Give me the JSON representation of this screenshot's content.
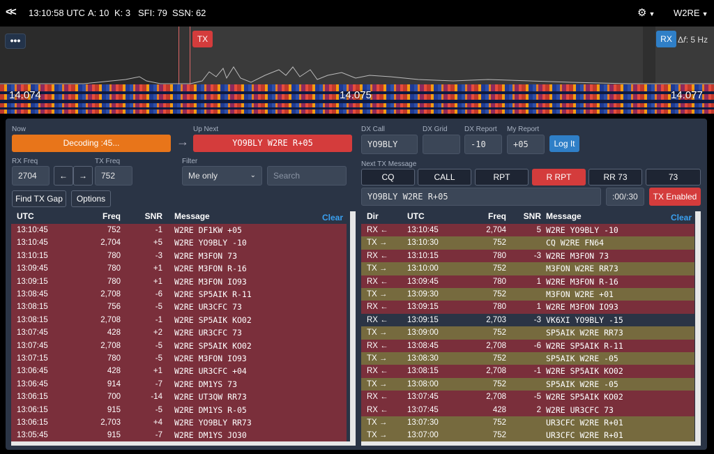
{
  "topbar": {
    "back_icon": "double-chevron-left-icon",
    "time": "13:10:58 UTC",
    "a_index": "A: 10",
    "k_index": "K: 3",
    "sfi": "SFI: 79",
    "ssn": "SSN: 62",
    "settings_icon": "gear-icon",
    "user": "W2RE"
  },
  "waterfall": {
    "menu_label": "•••",
    "tx_label": "TX",
    "rx_label": "RX",
    "delta": "Δ𝑓: 5 Hz",
    "freq_left": "14.074",
    "freq_mid": "14.075",
    "freq_right": "14.077"
  },
  "left_panel": {
    "now_label": "Now",
    "now_value": "Decoding :45...",
    "upnext_label": "Up Next",
    "upnext_value": "YO9BLY W2RE R+05",
    "rxfreq_label": "RX Freq",
    "rxfreq_value": "2704",
    "txfreq_label": "TX Freq",
    "txfreq_value": "752",
    "filter_label": "Filter",
    "filter_value": "Me only",
    "search_placeholder": "Search",
    "find_gap": "Find TX Gap",
    "options": "Options",
    "clear": "Clear",
    "headers": {
      "utc": "UTC",
      "freq": "Freq",
      "snr": "SNR",
      "msg": "Message"
    },
    "rows": [
      {
        "utc": "13:10:45",
        "freq": "752",
        "snr": "-1",
        "msg": "W2RE DF1KW +05"
      },
      {
        "utc": "13:10:45",
        "freq": "2,704",
        "snr": "+5",
        "msg": "W2RE YO9BLY -10"
      },
      {
        "utc": "13:10:15",
        "freq": "780",
        "snr": "-3",
        "msg": "W2RE M3FON 73"
      },
      {
        "utc": "13:09:45",
        "freq": "780",
        "snr": "+1",
        "msg": "W2RE M3FON R-16"
      },
      {
        "utc": "13:09:15",
        "freq": "780",
        "snr": "+1",
        "msg": "W2RE M3FON IO93"
      },
      {
        "utc": "13:08:45",
        "freq": "2,708",
        "snr": "-6",
        "msg": "W2RE SP5AIK R-11"
      },
      {
        "utc": "13:08:15",
        "freq": "756",
        "snr": "-5",
        "msg": "W2RE UR3CFC 73"
      },
      {
        "utc": "13:08:15",
        "freq": "2,708",
        "snr": "-1",
        "msg": "W2RE SP5AIK KO02"
      },
      {
        "utc": "13:07:45",
        "freq": "428",
        "snr": "+2",
        "msg": "W2RE UR3CFC 73"
      },
      {
        "utc": "13:07:45",
        "freq": "2,708",
        "snr": "-5",
        "msg": "W2RE SP5AIK KO02"
      },
      {
        "utc": "13:07:15",
        "freq": "780",
        "snr": "-5",
        "msg": "W2RE M3FON IO93"
      },
      {
        "utc": "13:06:45",
        "freq": "428",
        "snr": "+1",
        "msg": "W2RE UR3CFC +04"
      },
      {
        "utc": "13:06:45",
        "freq": "914",
        "snr": "-7",
        "msg": "W2RE DM1YS 73"
      },
      {
        "utc": "13:06:15",
        "freq": "700",
        "snr": "-14",
        "msg": "W2RE UT3QW RR73"
      },
      {
        "utc": "13:06:15",
        "freq": "915",
        "snr": "-5",
        "msg": "W2RE DM1YS R-05"
      },
      {
        "utc": "13:06:15",
        "freq": "2,703",
        "snr": "+4",
        "msg": "W2RE YO9BLY RR73"
      },
      {
        "utc": "13:05:45",
        "freq": "915",
        "snr": "-7",
        "msg": "W2RE DM1YS JO30"
      }
    ]
  },
  "right_panel": {
    "dxcall_label": "DX Call",
    "dxcall_value": "YO9BLY",
    "dxgrid_label": "DX Grid",
    "dxgrid_value": "",
    "dxreport_label": "DX Report",
    "dxreport_value": "-10",
    "myreport_label": "My Report",
    "myreport_value": "+05",
    "logit": "Log It",
    "next_tx_label": "Next TX Message",
    "tx_buttons": [
      "CQ",
      "CALL",
      "RPT",
      "R RPT",
      "RR 73",
      "73"
    ],
    "tx_message": "YO9BLY W2RE R+05",
    "tx_timer": ":00/:30",
    "tx_enabled": "TX Enabled",
    "clear": "Clear",
    "headers": {
      "dir": "Dir",
      "utc": "UTC",
      "freq": "Freq",
      "snr": "SNR",
      "msg": "Message"
    },
    "rows": [
      {
        "dir": "RX ←",
        "utc": "13:10:45",
        "freq": "2,704",
        "snr": "5",
        "msg": "W2RE YO9BLY -10",
        "kind": "rx"
      },
      {
        "dir": "TX →",
        "utc": "13:10:30",
        "freq": "752",
        "snr": "",
        "msg": "CQ W2RE FN64",
        "kind": "tx"
      },
      {
        "dir": "RX ←",
        "utc": "13:10:15",
        "freq": "780",
        "snr": "-3",
        "msg": "W2RE M3FON 73",
        "kind": "rx"
      },
      {
        "dir": "TX →",
        "utc": "13:10:00",
        "freq": "752",
        "snr": "",
        "msg": "M3FON W2RE RR73",
        "kind": "tx"
      },
      {
        "dir": "RX ←",
        "utc": "13:09:45",
        "freq": "780",
        "snr": "1",
        "msg": "W2RE M3FON R-16",
        "kind": "rx"
      },
      {
        "dir": "TX →",
        "utc": "13:09:30",
        "freq": "752",
        "snr": "",
        "msg": "M3FON W2RE +01",
        "kind": "tx"
      },
      {
        "dir": "RX ←",
        "utc": "13:09:15",
        "freq": "780",
        "snr": "1",
        "msg": "W2RE M3FON IO93",
        "kind": "rx"
      },
      {
        "dir": "RX ←",
        "utc": "13:09:15",
        "freq": "2,703",
        "snr": "-3",
        "msg": "VK6XI YO9BLY -15",
        "kind": "other"
      },
      {
        "dir": "TX →",
        "utc": "13:09:00",
        "freq": "752",
        "snr": "",
        "msg": "SP5AIK W2RE RR73",
        "kind": "tx"
      },
      {
        "dir": "RX ←",
        "utc": "13:08:45",
        "freq": "2,708",
        "snr": "-6",
        "msg": "W2RE SP5AIK R-11",
        "kind": "rx"
      },
      {
        "dir": "TX →",
        "utc": "13:08:30",
        "freq": "752",
        "snr": "",
        "msg": "SP5AIK W2RE -05",
        "kind": "tx"
      },
      {
        "dir": "RX ←",
        "utc": "13:08:15",
        "freq": "2,708",
        "snr": "-1",
        "msg": "W2RE SP5AIK KO02",
        "kind": "rx"
      },
      {
        "dir": "TX →",
        "utc": "13:08:00",
        "freq": "752",
        "snr": "",
        "msg": "SP5AIK W2RE -05",
        "kind": "tx"
      },
      {
        "dir": "RX ←",
        "utc": "13:07:45",
        "freq": "2,708",
        "snr": "-5",
        "msg": "W2RE SP5AIK KO02",
        "kind": "rx"
      },
      {
        "dir": "RX ←",
        "utc": "13:07:45",
        "freq": "428",
        "snr": "2",
        "msg": "W2RE UR3CFC 73",
        "kind": "rx"
      },
      {
        "dir": "TX →",
        "utc": "13:07:30",
        "freq": "752",
        "snr": "",
        "msg": "UR3CFC W2RE R+01",
        "kind": "tx"
      },
      {
        "dir": "TX →",
        "utc": "13:07:00",
        "freq": "752",
        "snr": "",
        "msg": "UR3CFC W2RE R+01",
        "kind": "tx"
      }
    ]
  },
  "colors": {
    "rx_row": "#7a2f3b",
    "tx_row": "#766a3e",
    "other_row": "#2b3445",
    "accent_red": "#d43c3c",
    "accent_orange": "#e8751a",
    "accent_blue": "#2f7fc7"
  }
}
